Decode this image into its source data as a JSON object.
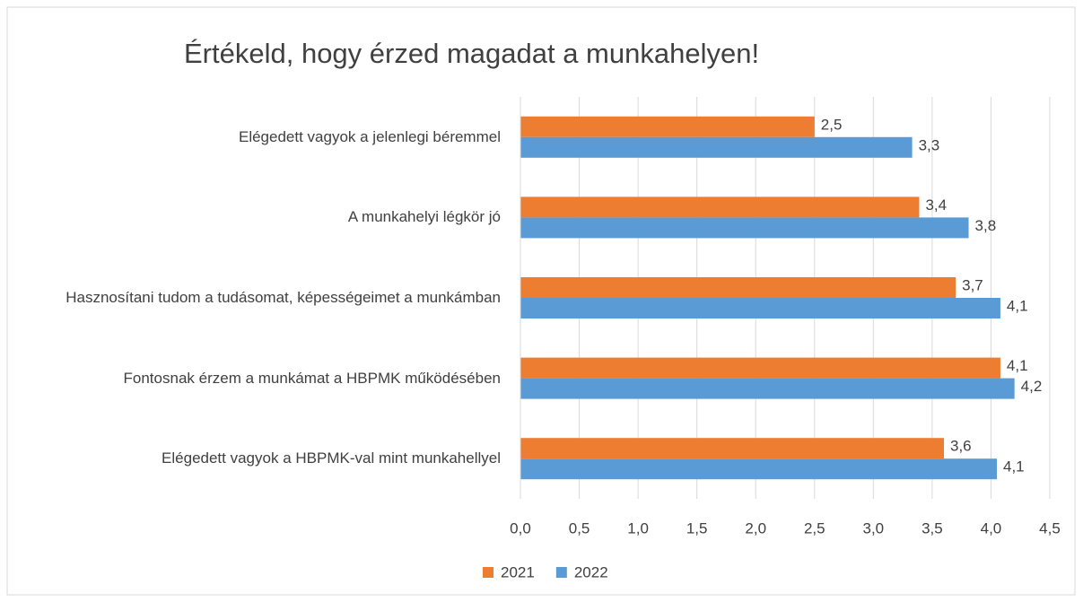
{
  "chart_data": {
    "type": "bar",
    "orientation": "horizontal",
    "title": "Értékeld, hogy érzed magadat a munkahelyen!",
    "categories": [
      "Elégedett vagyok a jelenlegi béremmel",
      "A munkahelyi légkör jó",
      "Hasznosítani tudom a tudásomat, képességeimet a munkámban",
      "Fontosnak érzem a munkámat a HBPMK működésében",
      "Elégedett vagyok a HBPMK-val mint munkahellyel"
    ],
    "series": [
      {
        "name": "2021",
        "color": "#ed7d31",
        "values": [
          2.5,
          3.39,
          3.7,
          4.08,
          3.6
        ],
        "value_labels": [
          "2,5",
          "3,4",
          "3,7",
          "4,1",
          "3,6"
        ]
      },
      {
        "name": "2022",
        "color": "#5b9bd5",
        "values": [
          3.33,
          3.81,
          4.08,
          4.2,
          4.05
        ],
        "value_labels": [
          "3,3",
          "3,8",
          "4,1",
          "4,2",
          "4,1"
        ]
      }
    ],
    "xlim": [
      0,
      4.5
    ],
    "xticks": [
      {
        "value": 0,
        "label": "0,0"
      },
      {
        "value": 0.5,
        "label": "0,5"
      },
      {
        "value": 1,
        "label": "1,0"
      },
      {
        "value": 1.5,
        "label": "1,5"
      },
      {
        "value": 2,
        "label": "2,0"
      },
      {
        "value": 2.5,
        "label": "2,5"
      },
      {
        "value": 3,
        "label": "3,0"
      },
      {
        "value": 3.5,
        "label": "3,5"
      },
      {
        "value": 4,
        "label": "4,0"
      },
      {
        "value": 4.5,
        "label": "4,5"
      }
    ],
    "grid": true,
    "legend": "bottom"
  }
}
